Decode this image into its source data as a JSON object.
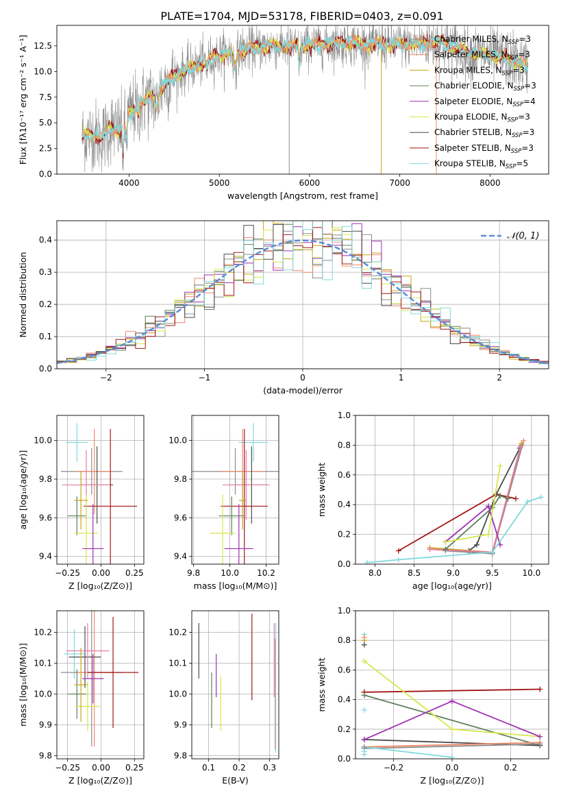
{
  "title": "PLATE=1704, MJD=53178, FIBERID=0403, z=0.091",
  "series_colors": {
    "Chabrier MILES": "#8c8c8c",
    "Salpeter MILES": "#f08a6a",
    "Kroupa MILES": "#c8a317",
    "Chabrier ELODIE": "#5d7e58",
    "Salpeter ELODIE": "#9e2fb0",
    "Kroupa ELODIE": "#d7e64a",
    "Chabrier STELIB": "#4a4a4a",
    "Salpeter STELIB": "#a31515",
    "Kroupa STELIB": "#7fd8dc",
    "Extra pink": "#e879a8",
    "Normal": "#5b8ad6"
  },
  "chart_data": [
    {
      "id": "spectrum",
      "type": "line",
      "title": "PLATE=1704, MJD=53178, FIBERID=0403, z=0.091",
      "xlabel": "wavelength [Angstrom, rest frame]",
      "ylabel": "Flux [fλ10⁻¹⁷ erg cm⁻² s⁻¹ A⁻¹]",
      "xlim": [
        3200,
        8650
      ],
      "ylim": [
        0,
        14.5
      ],
      "xticks": [
        4000,
        5000,
        6000,
        7000,
        8000
      ],
      "yticks": [
        0.0,
        2.5,
        5.0,
        7.5,
        10.0,
        12.5
      ],
      "grid": false,
      "legend_position": "right",
      "legend": [
        {
          "name": "Chabrier MILES, N",
          "sub": "SSP",
          "suffix": "=3"
        },
        {
          "name": "Salpeter MILES, N",
          "sub": "SSP",
          "suffix": "=3"
        },
        {
          "name": "Kroupa MILES, N",
          "sub": "SSP",
          "suffix": "=3"
        },
        {
          "name": "Chabrier ELODIE, N",
          "sub": "SSP",
          "suffix": "=3"
        },
        {
          "name": "Salpeter ELODIE, N",
          "sub": "SSP",
          "suffix": "=4"
        },
        {
          "name": "Kroupa ELODIE, N",
          "sub": "SSP",
          "suffix": "=3"
        },
        {
          "name": "Chabrier STELIB, N",
          "sub": "SSP",
          "suffix": "=3"
        },
        {
          "name": "Salpeter STELIB, N",
          "sub": "SSP",
          "suffix": "=3"
        },
        {
          "name": "Kroupa STELIB, N",
          "sub": "SSP",
          "suffix": "=5"
        }
      ],
      "continuum_knots": {
        "x": [
          3480,
          3600,
          3700,
          3800,
          3900,
          4000,
          4100,
          4200,
          4300,
          4400,
          4500,
          4600,
          4700,
          4800,
          4900,
          5000,
          5200,
          5400,
          5600,
          5800,
          6000,
          6200,
          6400,
          6600,
          6800,
          7000,
          7200,
          7400,
          7600,
          7800,
          8000,
          8200,
          8400
        ],
        "y": [
          3.6,
          3.9,
          3.5,
          4.6,
          4.2,
          5.8,
          6.6,
          7.3,
          7.7,
          8.8,
          9.6,
          10.0,
          10.4,
          10.8,
          11.2,
          11.6,
          12.0,
          12.3,
          12.5,
          12.4,
          12.6,
          12.7,
          12.8,
          12.7,
          12.7,
          12.6,
          12.7,
          12.9,
          12.4,
          11.8,
          11.6,
          11.2,
          10.6
        ]
      },
      "spikes": [
        {
          "x": 5775,
          "y_low": 0.0,
          "series": "Chabrier MILES"
        },
        {
          "x": 6795,
          "y_low": 0.0,
          "series": "Kroupa MILES"
        },
        {
          "x": 7405,
          "y_low": 0.0,
          "series": "Salpeter MILES"
        }
      ]
    },
    {
      "id": "residual_hist",
      "type": "line",
      "xlabel": "(data-model)/error",
      "ylabel": "Normed distribution",
      "xlim": [
        -2.5,
        2.5
      ],
      "ylim": [
        0,
        0.46
      ],
      "xticks": [
        -2,
        -1,
        0,
        1,
        2
      ],
      "yticks": [
        0.0,
        0.1,
        0.2,
        0.3,
        0.4
      ],
      "grid": true,
      "legend_position": "top-right",
      "normal_label": "𝒩(0, 1)",
      "normal_mean": 0,
      "normal_sigma": 1,
      "bin_width": 0.1
    },
    {
      "id": "age_vs_Z",
      "type": "scatter",
      "xlabel": "Z [log₁₀(Z/Z⊙)]",
      "ylabel": "age  [log₁₀(age/yr)]",
      "xlim": [
        -0.33,
        0.32
      ],
      "ylim": [
        9.36,
        10.13
      ],
      "xticks": [
        -0.25,
        0.0,
        0.25
      ],
      "yticks": [
        9.4,
        9.6,
        9.8,
        10.0
      ],
      "grid": true,
      "points": [
        {
          "series": "Kroupa STELIB",
          "x": -0.18,
          "xerr": 0.08,
          "y": 9.99,
          "yerr": 0.1
        },
        {
          "series": "Chabrier MILES",
          "x": -0.07,
          "xerr": 0.23,
          "y": 9.84,
          "yerr": 0.12
        },
        {
          "series": "Salpeter MILES",
          "x": -0.05,
          "xerr": 0.14,
          "y": 9.84,
          "yerr": 0.22
        },
        {
          "series": "Chabrier STELIB",
          "x": -0.03,
          "xerr": 0.12,
          "y": 9.77,
          "yerr": 0.2
        },
        {
          "series": "Extra pink",
          "x": -0.11,
          "xerr": 0.18,
          "y": 9.77,
          "yerr": 0.18
        },
        {
          "series": "Salpeter STELIB",
          "x": 0.07,
          "xerr": 0.2,
          "y": 9.66,
          "yerr": 0.4
        },
        {
          "series": "Chabrier ELODIE",
          "x": -0.18,
          "xerr": 0.07,
          "y": 9.61,
          "yerr": 0.1
        },
        {
          "series": "Kroupa ELODIE",
          "x": -0.11,
          "xerr": 0.09,
          "y": 9.52,
          "yerr": 0.2
        },
        {
          "series": "Salpeter ELODIE",
          "x": -0.06,
          "xerr": 0.08,
          "y": 9.44,
          "yerr": 0.23
        },
        {
          "series": "Kroupa MILES",
          "x": -0.15,
          "xerr": 0.05,
          "y": 9.69,
          "yerr": 0.15
        }
      ]
    },
    {
      "id": "age_vs_mass",
      "type": "scatter",
      "xlabel": "mass [log₁₀(M/M⊙)]",
      "ylabel": "",
      "xlim": [
        9.79,
        10.27
      ],
      "ylim": [
        9.36,
        10.13
      ],
      "xticks": [
        9.8,
        10.0,
        10.2
      ],
      "yticks": [
        9.4,
        9.6,
        9.8,
        10.0
      ],
      "grid": true,
      "points": [
        {
          "series": "Kroupa STELIB",
          "x": 10.13,
          "xerr": 0.08,
          "y": 9.99,
          "yerr": 0.1
        },
        {
          "series": "Chabrier MILES",
          "x": 10.03,
          "xerr": 0.25,
          "y": 9.84,
          "yerr": 0.12
        },
        {
          "series": "Salpeter MILES",
          "x": 10.07,
          "xerr": 0.12,
          "y": 9.84,
          "yerr": 0.22
        },
        {
          "series": "Chabrier STELIB",
          "x": 10.12,
          "xerr": 0.09,
          "y": 9.77,
          "yerr": 0.2
        },
        {
          "series": "Extra pink",
          "x": 10.09,
          "xerr": 0.13,
          "y": 9.77,
          "yerr": 0.18
        },
        {
          "series": "Salpeter STELIB",
          "x": 10.08,
          "xerr": 0.13,
          "y": 9.66,
          "yerr": 0.4
        },
        {
          "series": "Chabrier ELODIE",
          "x": 10.01,
          "xerr": 0.07,
          "y": 9.61,
          "yerr": 0.1
        },
        {
          "series": "Kroupa ELODIE",
          "x": 9.96,
          "xerr": 0.07,
          "y": 9.52,
          "yerr": 0.2
        },
        {
          "series": "Salpeter ELODIE",
          "x": 10.05,
          "xerr": 0.08,
          "y": 9.44,
          "yerr": 0.23
        },
        {
          "series": "Kroupa MILES",
          "x": 10.07,
          "xerr": 0.02,
          "y": 9.69,
          "yerr": 0.15
        }
      ]
    },
    {
      "id": "massweight_vs_age",
      "type": "line",
      "xlabel": "age  [log₁₀(age/yr)]",
      "ylabel": "mass weight",
      "xlim": [
        7.75,
        10.22
      ],
      "ylim": [
        0,
        1
      ],
      "xticks": [
        8.0,
        8.5,
        9.0,
        9.5,
        10.0
      ],
      "yticks": [
        0.0,
        0.2,
        0.4,
        0.6,
        0.8,
        1.0
      ],
      "grid": true,
      "series": [
        {
          "name": "Salpeter STELIB",
          "x": [
            8.3,
            9.55,
            9.8
          ],
          "y": [
            0.09,
            0.47,
            0.44
          ]
        },
        {
          "name": "Chabrier STELIB",
          "x": [
            9.2,
            9.3,
            9.55,
            9.85
          ],
          "y": [
            0.09,
            0.13,
            0.47,
            0.78
          ]
        },
        {
          "name": "Salpeter MILES",
          "x": [
            8.7,
            9.5,
            9.9
          ],
          "y": [
            0.1,
            0.07,
            0.83
          ]
        },
        {
          "name": "Chabrier MILES",
          "x": [
            8.9,
            9.5,
            9.88
          ],
          "y": [
            0.09,
            0.07,
            0.8
          ]
        },
        {
          "name": "Kroupa MILES",
          "x": [
            8.7,
            9.5,
            9.87
          ],
          "y": [
            0.11,
            0.08,
            0.81
          ]
        },
        {
          "name": "Extra pink",
          "x": [
            8.7,
            9.5,
            9.86
          ],
          "y": [
            0.1,
            0.08,
            0.79
          ]
        },
        {
          "name": "Chabrier ELODIE",
          "x": [
            8.9,
            9.5,
            9.6,
            9.7
          ],
          "y": [
            0.1,
            0.38,
            0.46,
            0.44
          ]
        },
        {
          "name": "Salpeter ELODIE",
          "x": [
            8.9,
            9.45,
            9.6
          ],
          "y": [
            0.15,
            0.39,
            0.13
          ]
        },
        {
          "name": "Kroupa ELODIE",
          "x": [
            8.9,
            9.45,
            9.6
          ],
          "y": [
            0.15,
            0.2,
            0.66
          ]
        },
        {
          "name": "Kroupa STELIB",
          "x": [
            7.9,
            8.3,
            9.5,
            9.95,
            10.12
          ],
          "y": [
            0.01,
            0.03,
            0.08,
            0.42,
            0.45
          ]
        }
      ]
    },
    {
      "id": "mass_vs_Z",
      "type": "scatter",
      "xlabel": "Z [log₁₀(Z/Z⊙)]",
      "ylabel": "mass [log₁₀(M/M⊙)]",
      "xlim": [
        -0.33,
        0.32
      ],
      "ylim": [
        9.79,
        10.27
      ],
      "xticks": [
        -0.25,
        0.0,
        0.25
      ],
      "yticks": [
        9.8,
        9.9,
        10.0,
        10.1,
        10.2
      ],
      "grid": true,
      "points": [
        {
          "series": "Kroupa STELIB",
          "x": -0.2,
          "xerr": 0.08,
          "y": 10.13,
          "yerr": 0.08
        },
        {
          "series": "Chabrier MILES",
          "x": -0.07,
          "xerr": 0.23,
          "y": 10.07,
          "yerr": 0.24
        },
        {
          "series": "Salpeter MILES",
          "x": -0.05,
          "xerr": 0.14,
          "y": 10.07,
          "yerr": 0.24
        },
        {
          "series": "Chabrier STELIB",
          "x": -0.12,
          "xerr": 0.12,
          "y": 10.12,
          "yerr": 0.1
        },
        {
          "series": "Extra pink",
          "x": -0.1,
          "xerr": 0.16,
          "y": 10.14,
          "yerr": 0.09
        },
        {
          "series": "Salpeter STELIB",
          "x": 0.09,
          "xerr": 0.19,
          "y": 10.07,
          "yerr": 0.18
        },
        {
          "series": "Chabrier ELODIE",
          "x": -0.18,
          "xerr": 0.07,
          "y": 10.0,
          "yerr": 0.08
        },
        {
          "series": "Kroupa ELODIE",
          "x": -0.1,
          "xerr": 0.09,
          "y": 9.96,
          "yerr": 0.08
        },
        {
          "series": "Salpeter ELODIE",
          "x": -0.06,
          "xerr": 0.08,
          "y": 10.05,
          "yerr": 0.08
        },
        {
          "series": "Kroupa MILES",
          "x": -0.15,
          "xerr": 0.05,
          "y": 10.03,
          "yerr": 0.12
        }
      ]
    },
    {
      "id": "mass_vs_ebv",
      "type": "scatter",
      "xlabel": "E(B-V)",
      "ylabel": "",
      "xlim": [
        0.045,
        0.33
      ],
      "ylim": [
        9.79,
        10.27
      ],
      "xticks": [
        0.1,
        0.2,
        0.3
      ],
      "yticks": [
        9.8,
        9.9,
        10.0,
        10.1,
        10.2
      ],
      "grid": true,
      "points": [
        {
          "series": "Chabrier STELIB",
          "x": 0.068,
          "y": 10.14,
          "yerr": 0.09
        },
        {
          "series": "Chabrier ELODIE",
          "x": 0.11,
          "y": 9.98,
          "yerr": 0.09
        },
        {
          "series": "Salpeter ELODIE",
          "x": 0.125,
          "y": 10.06,
          "yerr": 0.07
        },
        {
          "series": "Kroupa ELODIE",
          "x": 0.14,
          "y": 9.97,
          "yerr": 0.09
        },
        {
          "series": "Salpeter STELIB",
          "x": 0.242,
          "y": 10.12,
          "yerr": 0.14
        },
        {
          "series": "Extra pink",
          "x": 0.315,
          "y": 10.11,
          "yerr": 0.12
        },
        {
          "series": "Kroupa MILES",
          "x": 0.318,
          "y": 10.0,
          "yerr": 0.18
        },
        {
          "series": "Salpeter MILES",
          "x": 0.318,
          "y": 10.0,
          "yerr": 0.18
        },
        {
          "series": "Kroupa STELIB",
          "x": 0.32,
          "y": 10.02,
          "yerr": 0.21
        }
      ]
    },
    {
      "id": "massweight_vs_Z",
      "type": "line",
      "xlabel": "Z [log₁₀(Z/Z⊙)]",
      "ylabel": "mass weight",
      "xlim": [
        -0.33,
        0.33
      ],
      "ylim": [
        0,
        1
      ],
      "xticks": [
        -0.2,
        0.0,
        0.2
      ],
      "yticks": [
        0.0,
        0.2,
        0.4,
        0.6,
        0.8,
        1.0
      ],
      "grid": true,
      "series": [
        {
          "name": "Salpeter STELIB",
          "x": [
            -0.3,
            0.3
          ],
          "y": [
            0.45,
            0.47
          ]
        },
        {
          "name": "Chabrier ELODIE",
          "x": [
            -0.3,
            0.3
          ],
          "y": [
            0.43,
            0.09
          ]
        },
        {
          "name": "Kroupa ELODIE",
          "x": [
            -0.3,
            0.0,
            0.3
          ],
          "y": [
            0.66,
            0.2,
            0.15
          ]
        },
        {
          "name": "Salpeter ELODIE",
          "x": [
            -0.3,
            0.0,
            0.3
          ],
          "y": [
            0.13,
            0.39,
            0.15
          ]
        },
        {
          "name": "Chabrier STELIB",
          "x": [
            -0.3,
            0.3
          ],
          "y": [
            0.13,
            0.09
          ]
        },
        {
          "name": "Salpeter MILES",
          "x": [
            -0.3,
            0.3
          ],
          "y": [
            0.08,
            0.11
          ]
        },
        {
          "name": "Chabrier MILES",
          "x": [
            -0.3,
            0.3
          ],
          "y": [
            0.07,
            0.1
          ]
        },
        {
          "name": "Kroupa STELIB",
          "x": [
            -0.3,
            0.0
          ],
          "y": [
            0.08,
            0.01
          ]
        }
      ],
      "edge_points": {
        "x": -0.3,
        "values": [
          0.84,
          0.82,
          0.8,
          0.77,
          0.45,
          0.43,
          0.33,
          0.13,
          0.08,
          0.05,
          0.03
        ]
      }
    }
  ]
}
